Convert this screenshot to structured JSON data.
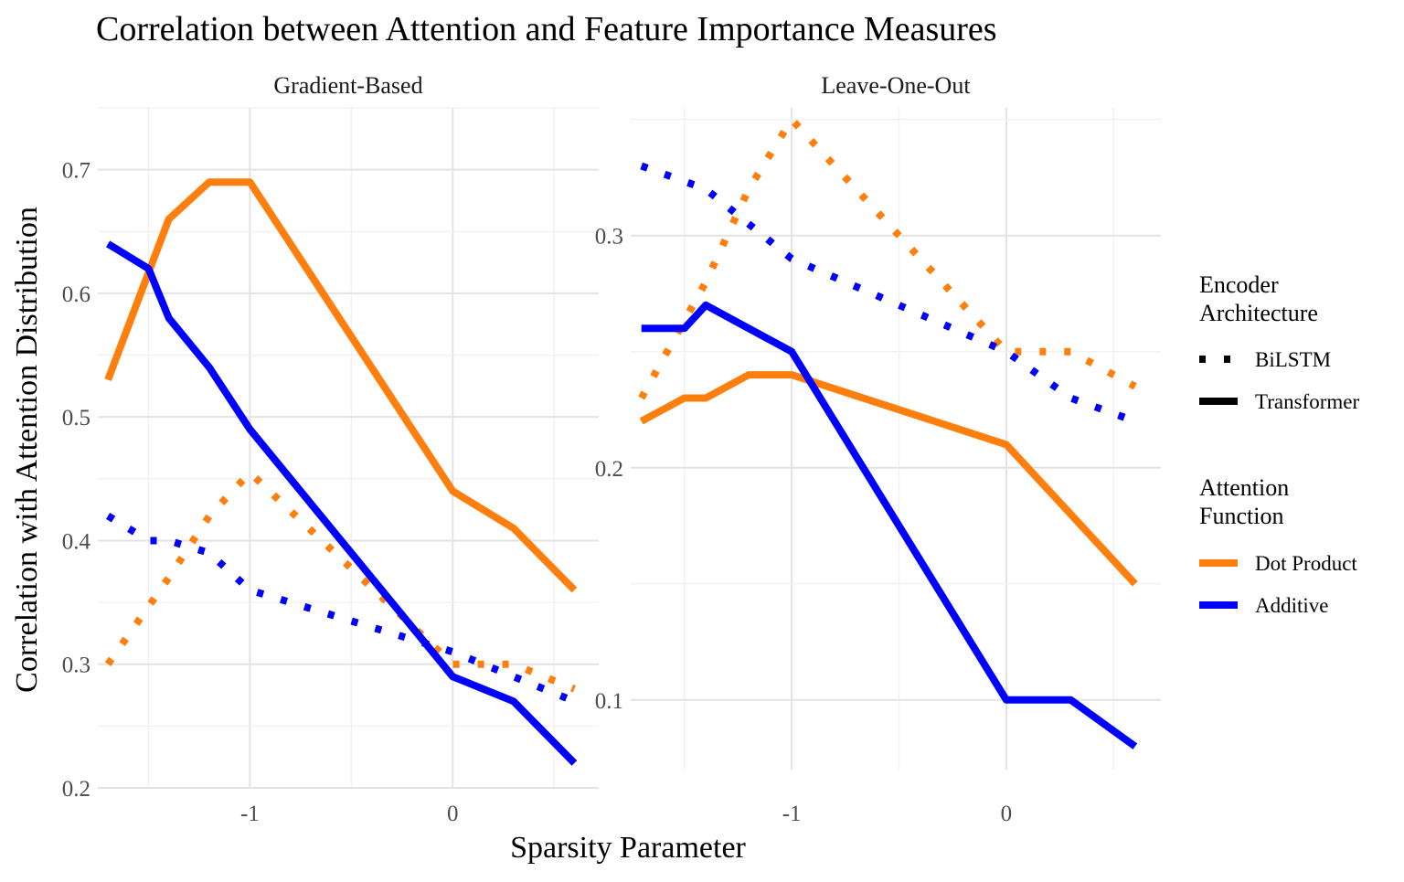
{
  "chart_data": {
    "type": "line",
    "title": "Correlation between Attention and Feature Importance Measures",
    "xlabel": "Sparsity Parameter",
    "ylabel": "Correlation with Attention Distribution",
    "grid": true,
    "legend_position": "right",
    "x_ticks": [
      "-1",
      "0"
    ],
    "colors": {
      "Dot Product": "#FF7F0E",
      "Additive": "#0000FF"
    },
    "legend": {
      "encoder": {
        "title_lines": [
          "Encoder",
          "Architecture"
        ],
        "items": [
          {
            "label": "BiLSTM",
            "linetype": "dotted"
          },
          {
            "label": "Transformer",
            "linetype": "solid"
          }
        ]
      },
      "attention": {
        "title_lines": [
          "Attention",
          "Function"
        ],
        "items": [
          {
            "label": "Dot Product",
            "color": "#FF7F0E"
          },
          {
            "label": "Additive",
            "color": "#0000FF"
          }
        ]
      }
    },
    "panels": [
      {
        "strip": "Gradient-Based",
        "xlim": [
          -1.75,
          0.72
        ],
        "ylim": [
          0.2,
          0.75
        ],
        "y_ticks": [
          "0.2",
          "0.3",
          "0.4",
          "0.5",
          "0.6",
          "0.7"
        ],
        "series": [
          {
            "attention": "Dot Product",
            "encoder": "Transformer",
            "x": [
              -1.7,
              -1.4,
              -1.2,
              -1.0,
              0.0,
              0.3,
              0.6
            ],
            "y": [
              0.53,
              0.66,
              0.69,
              0.69,
              0.44,
              0.41,
              0.36
            ]
          },
          {
            "attention": "Additive",
            "encoder": "Transformer",
            "x": [
              -1.7,
              -1.5,
              -1.4,
              -1.2,
              -1.0,
              0.0,
              0.3,
              0.6
            ],
            "y": [
              0.64,
              0.62,
              0.58,
              0.54,
              0.49,
              0.29,
              0.27,
              0.22
            ]
          },
          {
            "attention": "Dot Product",
            "encoder": "BiLSTM",
            "x": [
              -1.7,
              -1.4,
              -1.2,
              -1.0,
              0.0,
              0.3,
              0.6
            ],
            "y": [
              0.3,
              0.37,
              0.42,
              0.455,
              0.3,
              0.3,
              0.28
            ]
          },
          {
            "attention": "Additive",
            "encoder": "BiLSTM",
            "x": [
              -1.7,
              -1.5,
              -1.4,
              -1.2,
              -1.0,
              0.0,
              0.3,
              0.6
            ],
            "y": [
              0.42,
              0.4,
              0.4,
              0.39,
              0.36,
              0.31,
              0.29,
              0.27
            ]
          }
        ]
      },
      {
        "strip": "Leave-One-Out",
        "xlim": [
          -1.75,
          0.72
        ],
        "ylim": [
          0.07,
          0.355
        ],
        "y_ticks": [
          "0.1",
          "0.2",
          "0.3"
        ],
        "series": [
          {
            "attention": "Dot Product",
            "encoder": "Transformer",
            "x": [
              -1.7,
              -1.5,
              -1.4,
              -1.2,
              -1.0,
              0.0,
              0.3,
              0.6
            ],
            "y": [
              0.22,
              0.23,
              0.23,
              0.24,
              0.24,
              0.21,
              0.18,
              0.15
            ]
          },
          {
            "attention": "Additive",
            "encoder": "Transformer",
            "x": [
              -1.7,
              -1.5,
              -1.4,
              -1.2,
              -1.0,
              0.0,
              0.3,
              0.6
            ],
            "y": [
              0.26,
              0.26,
              0.27,
              0.26,
              0.25,
              0.1,
              0.1,
              0.08
            ]
          },
          {
            "attention": "Dot Product",
            "encoder": "BiLSTM",
            "x": [
              -1.7,
              -1.4,
              -1.2,
              -1.0,
              0.0,
              0.3,
              0.6
            ],
            "y": [
              0.23,
              0.28,
              0.32,
              0.35,
              0.25,
              0.25,
              0.235
            ]
          },
          {
            "attention": "Additive",
            "encoder": "BiLSTM",
            "x": [
              -1.7,
              -1.4,
              -1.2,
              -1.0,
              0.0,
              0.3,
              0.6
            ],
            "y": [
              0.33,
              0.32,
              0.305,
              0.29,
              0.25,
              0.23,
              0.22
            ]
          }
        ]
      }
    ]
  }
}
